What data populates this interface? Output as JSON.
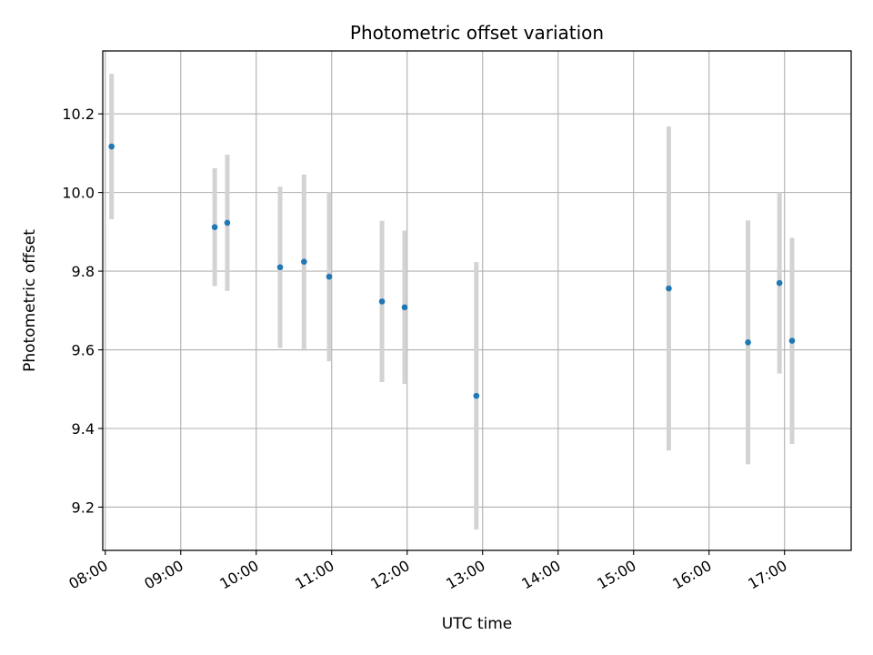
{
  "chart_data": {
    "type": "scatter",
    "title": "Photometric offset variation",
    "xlabel": "UTC time",
    "ylabel": "Photometric offset",
    "x_ticks": [
      "08:00",
      "09:00",
      "10:00",
      "11:00",
      "12:00",
      "13:00",
      "14:00",
      "15:00",
      "16:00",
      "17:00"
    ],
    "y_ticks": [
      "9.2",
      "9.4",
      "9.6",
      "9.8",
      "10.0",
      "10.2"
    ],
    "xlim": [
      "07:58",
      "17:53"
    ],
    "ylim": [
      9.09,
      10.36
    ],
    "grid": true,
    "point_color": "#1f77b4",
    "errorbar_color": "#d3d3d3",
    "points": [
      {
        "x": "08:05",
        "y": 10.117,
        "yerr": 0.185
      },
      {
        "x": "09:27",
        "y": 9.912,
        "yerr": 0.15
      },
      {
        "x": "09:37",
        "y": 9.923,
        "yerr": 0.173
      },
      {
        "x": "10:19",
        "y": 9.81,
        "yerr": 0.205
      },
      {
        "x": "10:38",
        "y": 9.824,
        "yerr": 0.222
      },
      {
        "x": "10:58",
        "y": 9.786,
        "yerr": 0.215
      },
      {
        "x": "11:40",
        "y": 9.723,
        "yerr": 0.205
      },
      {
        "x": "11:58",
        "y": 9.708,
        "yerr": 0.195
      },
      {
        "x": "12:55",
        "y": 9.483,
        "yerr": 0.34
      },
      {
        "x": "15:28",
        "y": 9.756,
        "yerr": 0.412
      },
      {
        "x": "16:31",
        "y": 9.619,
        "yerr": 0.31
      },
      {
        "x": "16:56",
        "y": 9.77,
        "yerr": 0.23
      },
      {
        "x": "17:06",
        "y": 9.623,
        "yerr": 0.262
      }
    ]
  }
}
